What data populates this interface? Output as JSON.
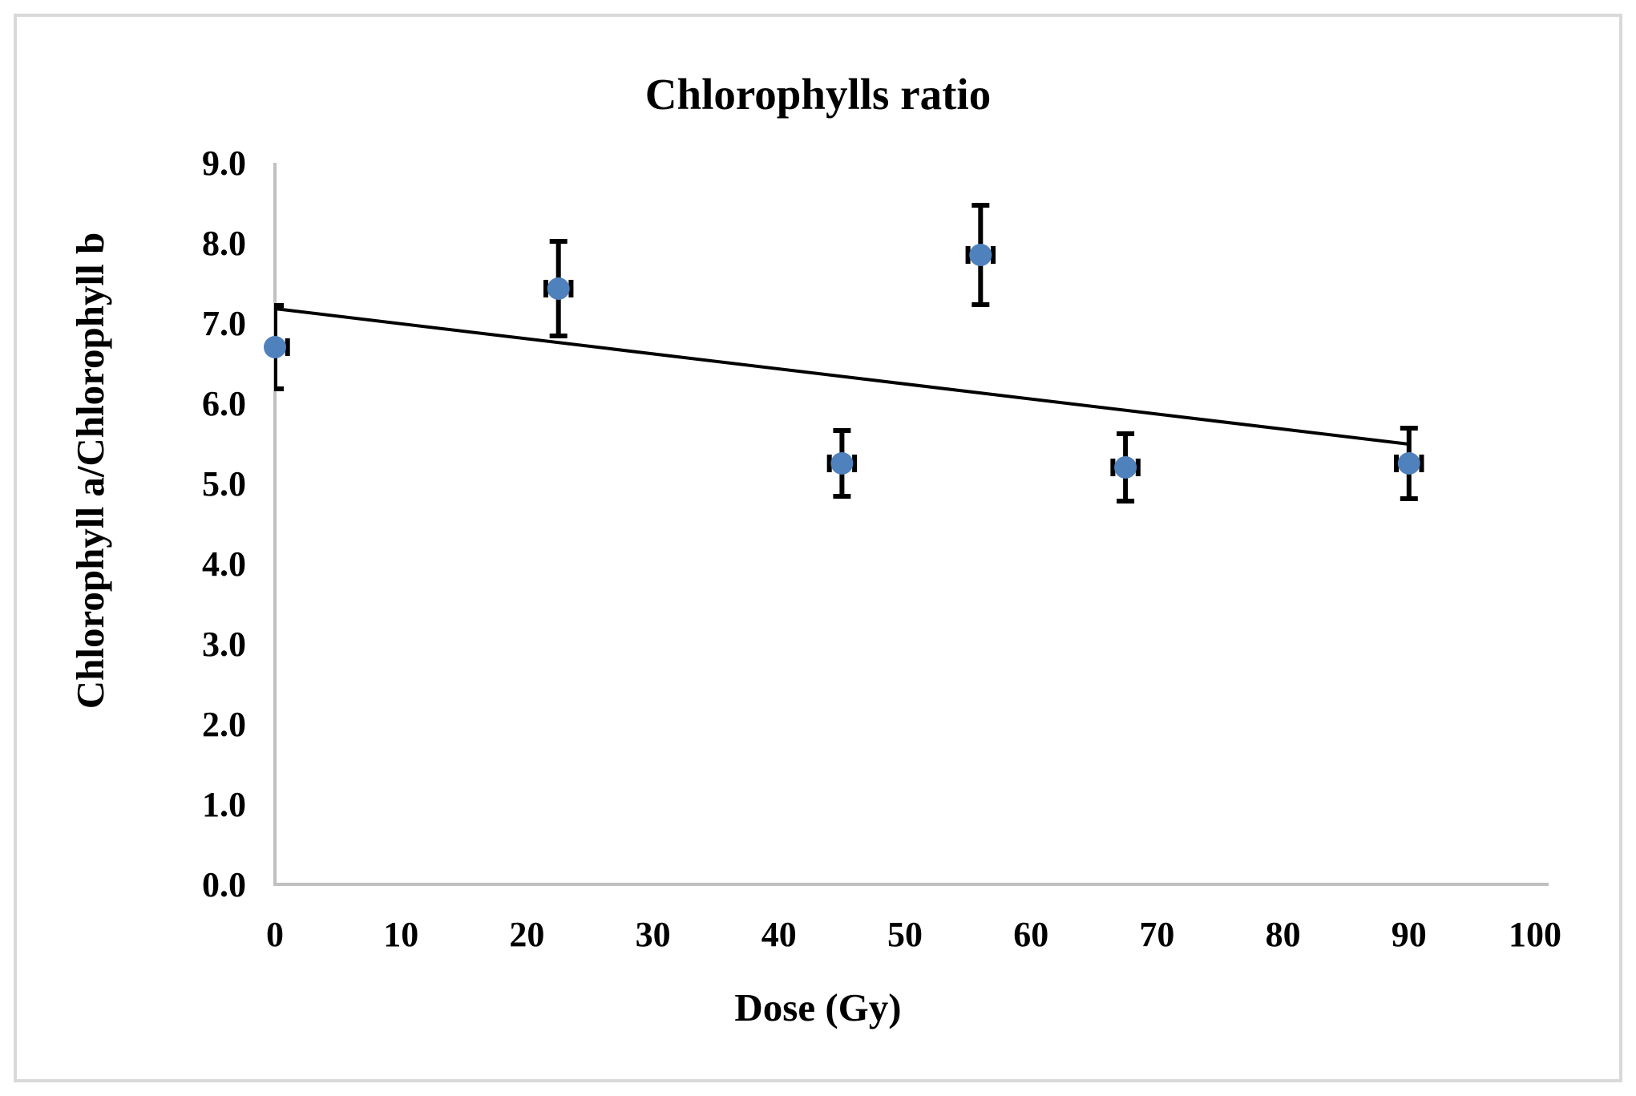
{
  "figure": {
    "title": "Chlorophylls ratio",
    "x_axis_title": "Dose (Gy)",
    "y_axis_title": "Chlorophyll a/Chlorophyll b"
  },
  "chart_data": {
    "type": "scatter",
    "title": "Chlorophylls ratio",
    "xlabel": "Dose (Gy)",
    "ylabel": "Chlorophyll a/Chlorophyll b",
    "xlim": [
      0,
      100
    ],
    "ylim": [
      0.0,
      9.0
    ],
    "x_ticks": [
      "0",
      "10",
      "20",
      "30",
      "40",
      "50",
      "60",
      "70",
      "80",
      "90",
      "100"
    ],
    "y_ticks": [
      "0.0",
      "1.0",
      "2.0",
      "3.0",
      "4.0",
      "5.0",
      "6.0",
      "7.0",
      "8.0",
      "9.0"
    ],
    "grid": false,
    "legend": false,
    "series": [
      {
        "name": "Chlorophyll a/Chlorophyll b ratio",
        "marker": "circle",
        "marker_color": "#4F81BD",
        "error_bar_color": "#000000",
        "points": [
          {
            "x": 0,
            "y": 6.7,
            "y_err": 0.52,
            "x_err": 1
          },
          {
            "x": 22.5,
            "y": 7.43,
            "y_err": 0.59,
            "x_err": 1
          },
          {
            "x": 45,
            "y": 5.25,
            "y_err": 0.41,
            "x_err": 1
          },
          {
            "x": 56,
            "y": 7.85,
            "y_err": 0.62,
            "x_err": 1
          },
          {
            "x": 67.5,
            "y": 5.2,
            "y_err": 0.42,
            "x_err": 1
          },
          {
            "x": 90,
            "y": 5.25,
            "y_err": 0.44,
            "x_err": 1
          }
        ]
      }
    ],
    "trendline": {
      "x1": 0,
      "y1": 7.18,
      "x2": 90,
      "y2": 5.49,
      "color": "#000000"
    },
    "colors": {
      "axis_line": "#C0C0C0",
      "frame_border": "#D9D9D9",
      "text": "#000000",
      "background": "#FFFFFF"
    }
  }
}
